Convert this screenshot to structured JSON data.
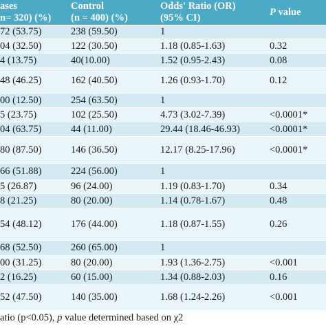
{
  "table": {
    "header": [
      [
        "ases",
        "n= 320) (%)"
      ],
      [
        "Control",
        "(n = 400) (%)"
      ],
      [
        "Odds' Ratio (OR)",
        "(95% CI)"
      ],
      [
        "P",
        " value"
      ]
    ],
    "rows": [
      [
        "72 (53.75)",
        "238 (59.50)",
        "1"
      ],
      [
        "04 (32.50)",
        "122 (30.50)",
        "1.18 (0.85-1.63)",
        "0.32"
      ],
      [
        "4 (13.75)",
        "40(10.00)",
        "1.52 (0.95-2.43)",
        "0.08"
      ],
      [
        "48 (46.25)",
        "162 (40.50)",
        "1.26 (0.93-1.70)",
        "0.12"
      ],
      [
        "00 (12.50)",
        "254 (63.50)",
        "1"
      ],
      [
        "5 (23.75)",
        "102 (25.50)",
        "4.73 (3.02-7.39)",
        "<0.0001*"
      ],
      [
        "04 (63.75)",
        "44 (11.00)",
        "29.44 (18.46-46.93)",
        "<0.0001*"
      ],
      [
        "80 (87.50)",
        "146 (36.50)",
        "12.17 (8.25-17.96)",
        "<0.0001*"
      ],
      [
        "66 (51.88)",
        "224 (56.00)",
        "1"
      ],
      [
        "5 (26.87)",
        "96 (24.00)",
        "1.19 (0.83-1.70)",
        "0.34"
      ],
      [
        "8 (21.25)",
        "80 (20.00)",
        "1.14 (0.78-1.67)",
        "0.48"
      ],
      [
        "54 (48.12)",
        "176 (44.00)",
        "1.18 (0.87-1.55)",
        "0.26"
      ],
      [
        "68 (52.50)",
        "260 (65.00)",
        "1"
      ],
      [
        "00 (31.25)",
        "80 (20.00)",
        "1.93 (1.36-2.75)",
        "<0.001"
      ],
      [
        "2 (16.25)",
        "60 (15.00)",
        "1.34 (0.88-2.03)",
        "0.16"
      ],
      [
        "52 (47.50)",
        "140 (35.00)",
        "1.68 (1.24-2.26)",
        "<0.001"
      ]
    ],
    "footer": [
      "atio (p<0.05), ",
      "p",
      " value determined based on χ2"
    ]
  }
}
